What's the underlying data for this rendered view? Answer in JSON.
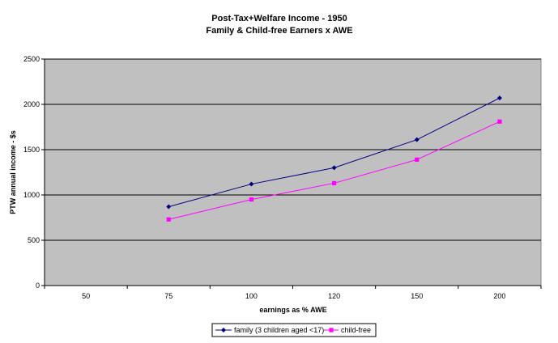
{
  "chart_data": {
    "type": "line",
    "title": "Post-Tax+Welfare Income - 1950",
    "subtitle": "Family & Child-free Earners x AWE",
    "xlabel": "earnings as % AWE",
    "ylabel": "PTW annual income - $s",
    "categories": [
      "50",
      "75",
      "100",
      "120",
      "150",
      "200"
    ],
    "ylim": [
      0,
      2500
    ],
    "yticks": [
      "0",
      "500",
      "1000",
      "1500",
      "2000",
      "2500"
    ],
    "grid": true,
    "legend_position": "bottom",
    "series": [
      {
        "name": "family (3 children aged <17)",
        "color": "#000080",
        "marker": "diamond",
        "values": [
          null,
          870,
          1120,
          1300,
          1610,
          2070
        ]
      },
      {
        "name": "child-free",
        "color": "#ff00ff",
        "marker": "square",
        "values": [
          null,
          730,
          950,
          1130,
          1390,
          1810
        ]
      }
    ],
    "plot_background": "#c0c0c0"
  }
}
